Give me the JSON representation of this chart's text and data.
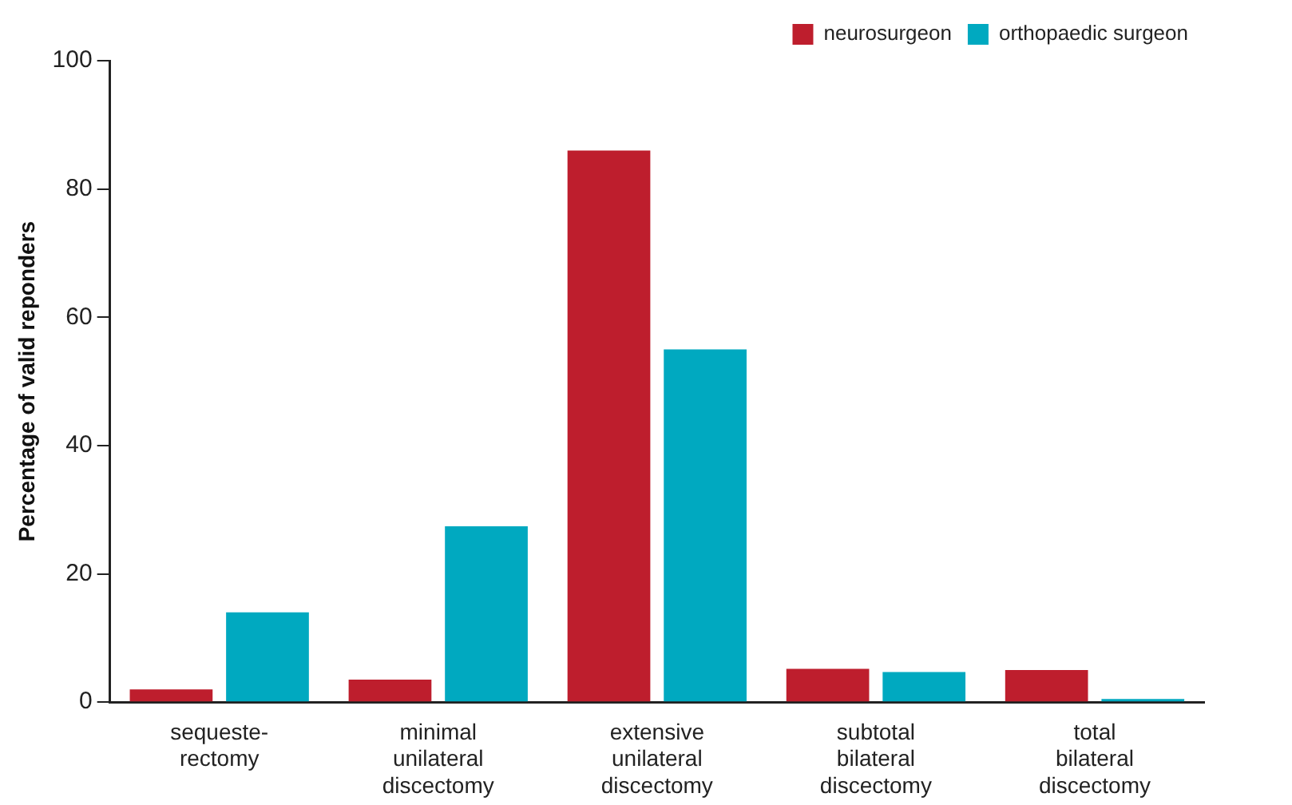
{
  "chart_data": {
    "type": "bar",
    "ylabel": "Percentage of valid reponders",
    "categories": [
      "sequeste-\nrectomy",
      "minimal\nunilateral\ndiscectomy",
      "extensive\nunilateral\ndiscectomy",
      "subtotal\nbilateral\ndiscectomy",
      "total\nbilateral\ndiscectomy"
    ],
    "series": [
      {
        "name": "neurosurgeon",
        "color": "#be1e2d",
        "values": [
          2,
          3.5,
          86,
          5.2,
          5
        ]
      },
      {
        "name": "orthopaedic surgeon",
        "color": "#00a9c0",
        "values": [
          14,
          27.4,
          55,
          4.7,
          0.5
        ]
      }
    ],
    "ylim": [
      0,
      100
    ],
    "yticks": [
      0,
      20,
      40,
      60,
      80,
      100
    ],
    "grid": false,
    "legend": "top right"
  }
}
